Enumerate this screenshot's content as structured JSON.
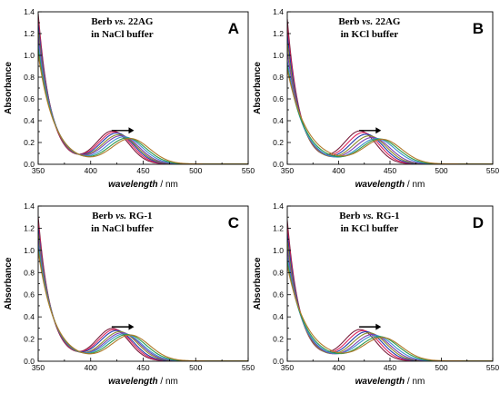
{
  "chart_data": [
    {
      "panel": "A",
      "type": "line",
      "title_line1_prefix": "Berb ",
      "title_line1_vs": "vs.",
      "title_line1_suffix": " 22AG",
      "title_line2": "in NaCl buffer",
      "xlabel_italic": "wavelength",
      "xlabel_unit": " / nm",
      "ylabel": "Absorbance",
      "xlim": [
        350,
        550
      ],
      "ylim": [
        0,
        1.4
      ],
      "xticks": [
        "350",
        "400",
        "450",
        "500",
        "550"
      ],
      "yticks": [
        "0.0",
        "0.2",
        "0.4",
        "0.6",
        "0.8",
        "1.0",
        "1.2",
        "1.4"
      ],
      "arrow_direction": "right",
      "series": [
        {
          "color": "#7a1f3d",
          "a0": 1.38,
          "decay": 12,
          "peak": 0.3,
          "center": 421,
          "width": 22
        },
        {
          "color": "#e0245e",
          "a0": 1.33,
          "decay": 12.5,
          "peak": 0.29,
          "center": 423,
          "width": 22.5
        },
        {
          "color": "#1f3aa8",
          "a0": 1.28,
          "decay": 13,
          "peak": 0.28,
          "center": 425,
          "width": 23
        },
        {
          "color": "#8b8b2a",
          "a0": 1.22,
          "decay": 13.5,
          "peak": 0.265,
          "center": 427,
          "width": 23.5
        },
        {
          "color": "#7a3fb0",
          "a0": 1.17,
          "decay": 14,
          "peak": 0.255,
          "center": 429,
          "width": 24
        },
        {
          "color": "#3b8fd0",
          "a0": 1.11,
          "decay": 14.5,
          "peak": 0.245,
          "center": 432,
          "width": 24.5
        },
        {
          "color": "#2e9a4a",
          "a0": 1.06,
          "decay": 15,
          "peak": 0.235,
          "center": 435,
          "width": 25
        },
        {
          "color": "#b07a2a",
          "a0": 1.01,
          "decay": 15.5,
          "peak": 0.23,
          "center": 438,
          "width": 25.5
        }
      ]
    },
    {
      "panel": "B",
      "type": "line",
      "title_line1_prefix": "Berb ",
      "title_line1_vs": "vs.",
      "title_line1_suffix": " 22AG",
      "title_line2": "in KCl buffer",
      "xlabel_italic": "wavelength",
      "xlabel_unit": " / nm",
      "ylabel": "Absorbance",
      "xlim": [
        350,
        550
      ],
      "ylim": [
        0,
        1.4
      ],
      "xticks": [
        "350",
        "400",
        "450",
        "500",
        "550"
      ],
      "yticks": [
        "0.0",
        "0.2",
        "0.4",
        "0.6",
        "0.8",
        "1.0",
        "1.2",
        "1.4"
      ],
      "arrow_direction": "right",
      "series": [
        {
          "color": "#7a1f3d",
          "a0": 1.33,
          "decay": 12,
          "peak": 0.3,
          "center": 421,
          "width": 22
        },
        {
          "color": "#e0245e",
          "a0": 1.26,
          "decay": 12.5,
          "peak": 0.285,
          "center": 424,
          "width": 22.5
        },
        {
          "color": "#1f3aa8",
          "a0": 1.19,
          "decay": 13,
          "peak": 0.27,
          "center": 427,
          "width": 23
        },
        {
          "color": "#8b8b2a",
          "a0": 1.11,
          "decay": 13.5,
          "peak": 0.255,
          "center": 430,
          "width": 23.5
        },
        {
          "color": "#7a3fb0",
          "a0": 1.03,
          "decay": 14.5,
          "peak": 0.24,
          "center": 433,
          "width": 24
        },
        {
          "color": "#3b8fd0",
          "a0": 0.95,
          "decay": 15.5,
          "peak": 0.23,
          "center": 437,
          "width": 25
        },
        {
          "color": "#2e9a4a",
          "a0": 0.9,
          "decay": 17,
          "peak": 0.225,
          "center": 440,
          "width": 25.5
        },
        {
          "color": "#b07a2a",
          "a0": 0.87,
          "decay": 19,
          "peak": 0.22,
          "center": 443,
          "width": 26
        }
      ]
    },
    {
      "panel": "C",
      "type": "line",
      "title_line1_prefix": "Berb ",
      "title_line1_vs": "vs.",
      "title_line1_suffix": " RG-1",
      "title_line2": "in NaCl buffer",
      "xlabel_italic": "wavelength",
      "xlabel_unit": " / nm",
      "ylabel": "Absorbance",
      "xlim": [
        350,
        550
      ],
      "ylim": [
        0,
        1.4
      ],
      "xticks": [
        "350",
        "400",
        "450",
        "500",
        "550"
      ],
      "yticks": [
        "0.0",
        "0.2",
        "0.4",
        "0.6",
        "0.8",
        "1.0",
        "1.2",
        "1.4"
      ],
      "arrow_direction": "right",
      "series": [
        {
          "color": "#7a1f3d",
          "a0": 1.3,
          "decay": 12,
          "peak": 0.29,
          "center": 421,
          "width": 22
        },
        {
          "color": "#e0245e",
          "a0": 1.25,
          "decay": 12.5,
          "peak": 0.28,
          "center": 423,
          "width": 22.5
        },
        {
          "color": "#1f3aa8",
          "a0": 1.2,
          "decay": 13,
          "peak": 0.27,
          "center": 425,
          "width": 23
        },
        {
          "color": "#8b8b2a",
          "a0": 1.15,
          "decay": 13.5,
          "peak": 0.26,
          "center": 428,
          "width": 23.5
        },
        {
          "color": "#7a3fb0",
          "a0": 1.1,
          "decay": 14,
          "peak": 0.25,
          "center": 430,
          "width": 24
        },
        {
          "color": "#3b8fd0",
          "a0": 1.06,
          "decay": 14.5,
          "peak": 0.24,
          "center": 432,
          "width": 24.5
        },
        {
          "color": "#2e9a4a",
          "a0": 1.02,
          "decay": 15,
          "peak": 0.235,
          "center": 435,
          "width": 25
        },
        {
          "color": "#b07a2a",
          "a0": 0.99,
          "decay": 15.5,
          "peak": 0.23,
          "center": 438,
          "width": 25.5
        }
      ]
    },
    {
      "panel": "D",
      "type": "line",
      "title_line1_prefix": "Berb ",
      "title_line1_vs": "vs.",
      "title_line1_suffix": " RG-1",
      "title_line2": "in KCl buffer",
      "xlabel_italic": "wavelength",
      "xlabel_unit": " / nm",
      "ylabel": "Absorbance",
      "xlim": [
        350,
        550
      ],
      "ylim": [
        0,
        1.4
      ],
      "xticks": [
        "350",
        "400",
        "450",
        "500",
        "550"
      ],
      "yticks": [
        "0.0",
        "0.2",
        "0.4",
        "0.6",
        "0.8",
        "1.0",
        "1.2",
        "1.4"
      ],
      "arrow_direction": "right",
      "series": [
        {
          "color": "#7a1f3d",
          "a0": 1.27,
          "decay": 12,
          "peak": 0.28,
          "center": 421,
          "width": 22
        },
        {
          "color": "#e0245e",
          "a0": 1.21,
          "decay": 12.5,
          "peak": 0.27,
          "center": 424,
          "width": 22.5
        },
        {
          "color": "#1f3aa8",
          "a0": 1.15,
          "decay": 13,
          "peak": 0.26,
          "center": 427,
          "width": 23
        },
        {
          "color": "#8b8b2a",
          "a0": 1.08,
          "decay": 13.5,
          "peak": 0.25,
          "center": 430,
          "width": 23.5
        },
        {
          "color": "#7a3fb0",
          "a0": 1.01,
          "decay": 14.5,
          "peak": 0.235,
          "center": 433,
          "width": 24
        },
        {
          "color": "#3b8fd0",
          "a0": 0.95,
          "decay": 15.5,
          "peak": 0.225,
          "center": 436,
          "width": 25
        },
        {
          "color": "#2e9a4a",
          "a0": 0.9,
          "decay": 17,
          "peak": 0.215,
          "center": 440,
          "width": 25.5
        },
        {
          "color": "#b07a2a",
          "a0": 0.86,
          "decay": 19,
          "peak": 0.205,
          "center": 443,
          "width": 26
        }
      ]
    }
  ]
}
